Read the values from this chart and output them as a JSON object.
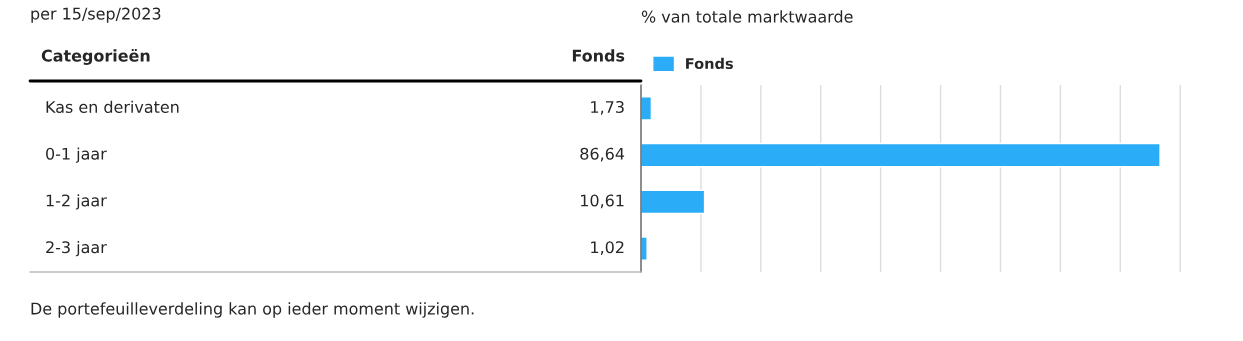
{
  "chart_data": {
    "type": "bar",
    "orientation": "horizontal",
    "title": "% van totale marktwaarde",
    "categories": [
      "Kas en derivaten",
      "0-1 jaar",
      "1-2 jaar",
      "2-3 jaar"
    ],
    "series": [
      {
        "name": "Fonds",
        "color": "#2aacf6",
        "values": [
          1.73,
          86.64,
          10.61,
          1.02
        ],
        "value_labels": [
          "1,73",
          "86,64",
          "10,61",
          "1,02"
        ]
      }
    ],
    "xticks": [
      {
        "value": 10,
        "label": null
      },
      {
        "value": 20,
        "label": null
      },
      {
        "value": 30,
        "label": null
      },
      {
        "value": 40,
        "label": null
      },
      {
        "value": 50,
        "label": null
      },
      {
        "value": 60,
        "label": null
      },
      {
        "value": 70,
        "label": null
      },
      {
        "value": 80,
        "label": null
      },
      {
        "value": 90,
        "label": null
      }
    ],
    "grid": "x",
    "legend": "top left",
    "annotations": [
      "per 15/sep/2023",
      "Categorieën",
      "Fonds",
      "De portefeuilleverdeling kan op ieder moment wijzigen."
    ]
  }
}
